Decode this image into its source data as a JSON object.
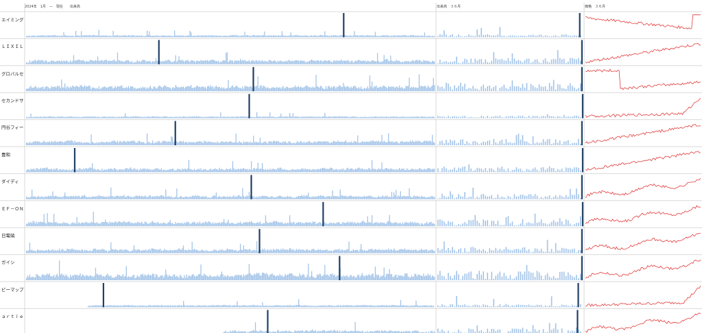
{
  "header": {
    "period_label": "2024年　1月　—　現在　　出来高",
    "recent_volume_label": "出来高　３６月",
    "price_label": "価格　３６月"
  },
  "colors": {
    "volume_bar": "#a4c4e8",
    "highlight_bar": "#1f3f66",
    "price_line": "#e23a3a",
    "grid": "#d9d9d9"
  },
  "chart_data": {
    "type": "bar",
    "panels": [
      "long-term volume",
      "36-month volume",
      "36-month price"
    ],
    "rows": [
      {
        "name": "エイミング",
        "hl_long": 0.775,
        "hl_recent": 0.97,
        "long_start": 0.0,
        "activity": 0.25,
        "price_shape": "dip_then_spike"
      },
      {
        "name": "ＬＩＸＩＬ",
        "hl_long": 0.325,
        "hl_recent": 0.985,
        "long_start": 0.0,
        "activity": 0.6,
        "price_shape": "uptrend"
      },
      {
        "name": "グロバルセ",
        "hl_long": 0.555,
        "hl_recent": 0.985,
        "long_start": 0.0,
        "activity": 0.8,
        "price_shape": "drop_then_rise"
      },
      {
        "name": "セカンドサ",
        "hl_long": 0.545,
        "hl_recent": 0.99,
        "long_start": 0.0,
        "activity": 0.2,
        "price_shape": "late_spike"
      },
      {
        "name": "円谷フィー",
        "hl_long": 0.365,
        "hl_recent": 0.985,
        "long_start": 0.0,
        "activity": 0.6,
        "price_shape": "uptrend"
      },
      {
        "name": "豊和",
        "hl_long": 0.12,
        "hl_recent": 0.99,
        "long_start": 0.0,
        "activity": 0.55,
        "price_shape": "uptrend"
      },
      {
        "name": "ダイディ",
        "hl_long": 0.55,
        "hl_recent": 0.985,
        "long_start": 0.0,
        "activity": 0.5,
        "price_shape": "wavy_up"
      },
      {
        "name": "ＥＦ－ＯＮ",
        "hl_long": 0.725,
        "hl_recent": 0.99,
        "long_start": 0.0,
        "activity": 0.65,
        "price_shape": "wavy_up"
      },
      {
        "name": "日電硝",
        "hl_long": 0.57,
        "hl_recent": 0.985,
        "long_start": 0.0,
        "activity": 0.6,
        "price_shape": "wavy_up"
      },
      {
        "name": "ガイシ",
        "hl_long": 0.765,
        "hl_recent": 0.985,
        "long_start": 0.0,
        "activity": 0.95,
        "price_shape": "wavy_up"
      },
      {
        "name": "ピーマップ",
        "hl_long": 0.19,
        "hl_recent": 0.96,
        "long_start": 0.15,
        "activity": 0.25,
        "price_shape": "late_spike"
      },
      {
        "name": "ａｒｔｉｅ",
        "hl_long": 0.59,
        "hl_recent": 0.955,
        "long_start": 0.48,
        "activity": 0.55,
        "price_shape": "wavy_up"
      }
    ]
  }
}
